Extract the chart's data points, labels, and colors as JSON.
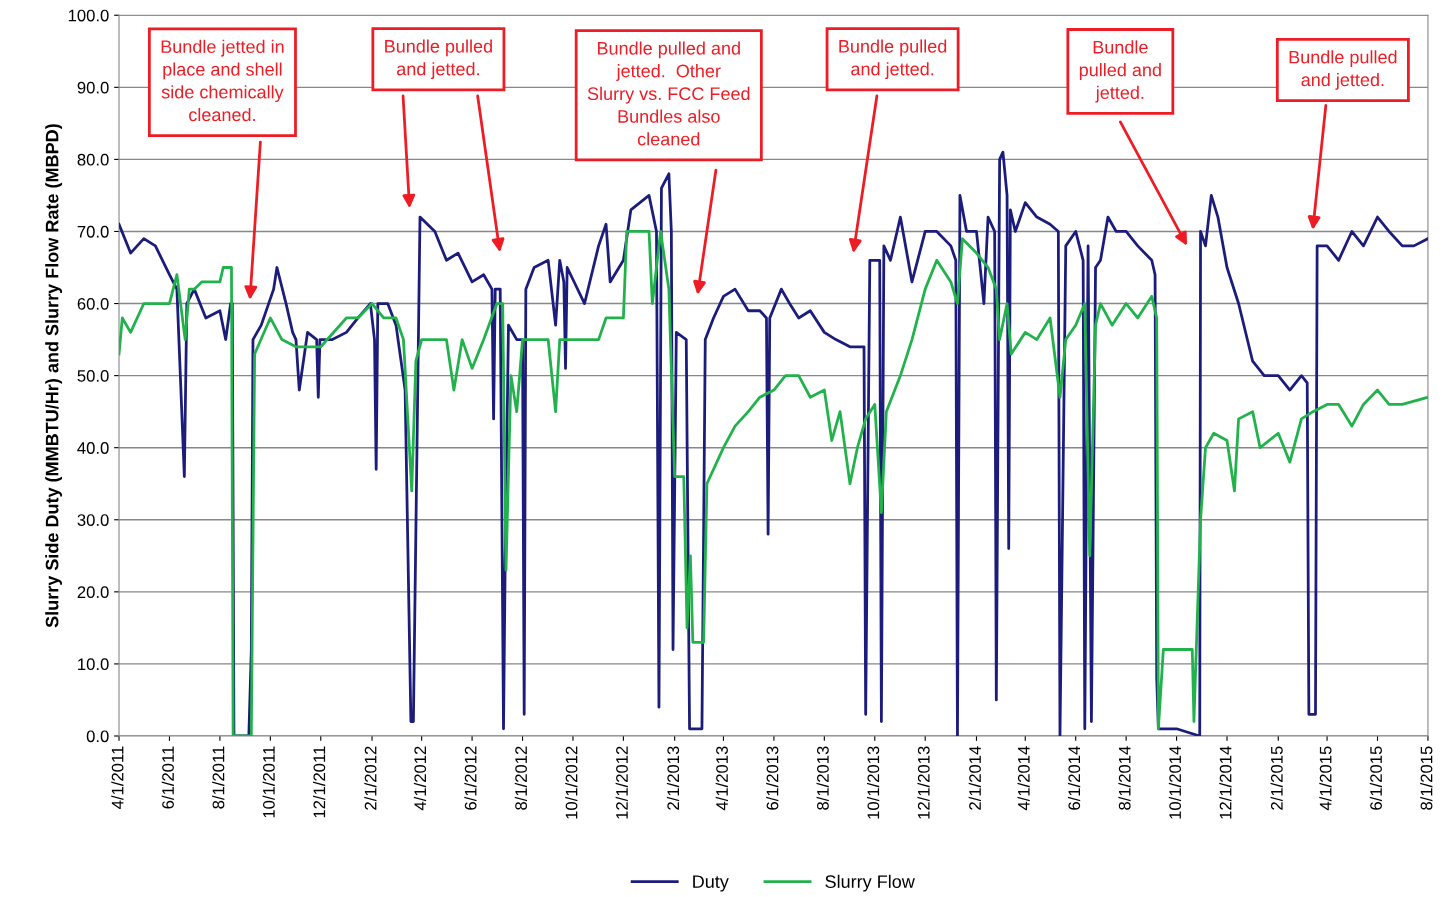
{
  "chart_data": {
    "type": "line",
    "ylabel": "Slurry Side Duty (MMBTU/Hr) and Slurry Flow Rate (MBPD)",
    "xlim": [
      "2011-04-01",
      "2015-08-01"
    ],
    "xticks": [
      {
        "value": "2011-04-01",
        "label": "4/1/2011"
      },
      {
        "value": "2011-06-01",
        "label": "6/1/2011"
      },
      {
        "value": "2011-08-01",
        "label": "8/1/2011"
      },
      {
        "value": "2011-10-01",
        "label": "10/1/2011"
      },
      {
        "value": "2011-12-01",
        "label": "12/1/2011"
      },
      {
        "value": "2012-02-01",
        "label": "2/1/2012"
      },
      {
        "value": "2012-04-01",
        "label": "4/1/2012"
      },
      {
        "value": "2012-06-01",
        "label": "6/1/2012"
      },
      {
        "value": "2012-08-01",
        "label": "8/1/2012"
      },
      {
        "value": "2012-10-01",
        "label": "10/1/2012"
      },
      {
        "value": "2012-12-01",
        "label": "12/1/2012"
      },
      {
        "value": "2013-02-01",
        "label": "2/1/2013"
      },
      {
        "value": "2013-04-01",
        "label": "4/1/2013"
      },
      {
        "value": "2013-06-01",
        "label": "6/1/2013"
      },
      {
        "value": "2013-08-01",
        "label": "8/1/2013"
      },
      {
        "value": "2013-10-01",
        "label": "10/1/2013"
      },
      {
        "value": "2013-12-01",
        "label": "12/1/2013"
      },
      {
        "value": "2014-02-01",
        "label": "2/1/2014"
      },
      {
        "value": "2014-04-01",
        "label": "4/1/2014"
      },
      {
        "value": "2014-06-01",
        "label": "6/1/2014"
      },
      {
        "value": "2014-08-01",
        "label": "8/1/2014"
      },
      {
        "value": "2014-10-01",
        "label": "10/1/2014"
      },
      {
        "value": "2014-12-01",
        "label": "12/1/2014"
      },
      {
        "value": "2015-02-01",
        "label": "2/1/2015"
      },
      {
        "value": "2015-04-01",
        "label": "4/1/2015"
      },
      {
        "value": "2015-06-01",
        "label": "6/1/2015"
      },
      {
        "value": "2015-08-01",
        "label": "8/1/2015"
      }
    ],
    "ylim": [
      0,
      100
    ],
    "yticks": [
      {
        "value": 0,
        "label": "0.0"
      },
      {
        "value": 10,
        "label": "10.0"
      },
      {
        "value": 20,
        "label": "20.0"
      },
      {
        "value": 30,
        "label": "30.0"
      },
      {
        "value": 40,
        "label": "40.0"
      },
      {
        "value": 50,
        "label": "50.0"
      },
      {
        "value": 60,
        "label": "60.0"
      },
      {
        "value": 70,
        "label": "70.0"
      },
      {
        "value": 80,
        "label": "80.0"
      },
      {
        "value": 90,
        "label": "90.0"
      },
      {
        "value": 100,
        "label": "100.0"
      }
    ],
    "grid": "y",
    "legend": "bottom",
    "line_style": "solid",
    "marker": "none",
    "series": [
      {
        "name": "Duty",
        "color": "#1c1c7c",
        "x": [
          "2011-04-01",
          "2011-04-15",
          "2011-05-01",
          "2011-05-15",
          "2011-06-01",
          "2011-06-10",
          "2011-06-19",
          "2011-06-22",
          "2011-07-01",
          "2011-07-15",
          "2011-08-01",
          "2011-08-08",
          "2011-08-14",
          "2011-08-16",
          "2011-08-18",
          "2011-09-05",
          "2011-09-08",
          "2011-09-10",
          "2011-09-20",
          "2011-10-05",
          "2011-10-09",
          "2011-10-20",
          "2011-10-28",
          "2011-11-01",
          "2011-11-05",
          "2011-11-15",
          "2011-11-26",
          "2011-11-28",
          "2011-11-30",
          "2011-12-15",
          "2012-01-01",
          "2012-01-15",
          "2012-01-30",
          "2012-02-04",
          "2012-02-06",
          "2012-02-08",
          "2012-02-20",
          "2012-03-01",
          "2012-03-12",
          "2012-03-19",
          "2012-03-22",
          "2012-03-30",
          "2012-04-17",
          "2012-05-01",
          "2012-05-15",
          "2012-06-01",
          "2012-06-15",
          "2012-06-25",
          "2012-06-27",
          "2012-06-29",
          "2012-07-05",
          "2012-07-09",
          "2012-07-11",
          "2012-07-15",
          "2012-07-25",
          "2012-08-01",
          "2012-08-03",
          "2012-08-05",
          "2012-08-15",
          "2012-09-01",
          "2012-09-10",
          "2012-09-15",
          "2012-09-20",
          "2012-09-22",
          "2012-09-24",
          "2012-10-15",
          "2012-11-01",
          "2012-11-10",
          "2012-11-15",
          "2012-12-01",
          "2012-12-10",
          "2013-01-01",
          "2013-01-10",
          "2013-01-13",
          "2013-01-16",
          "2013-01-25",
          "2013-01-28",
          "2013-01-30",
          "2013-02-03",
          "2013-02-15",
          "2013-02-19",
          "2013-03-06",
          "2013-03-10",
          "2013-03-20",
          "2013-04-01",
          "2013-04-15",
          "2013-05-01",
          "2013-05-15",
          "2013-05-23",
          "2013-05-25",
          "2013-05-27",
          "2013-06-10",
          "2013-06-20",
          "2013-07-01",
          "2013-07-15",
          "2013-08-01",
          "2013-08-15",
          "2013-09-01",
          "2013-09-18",
          "2013-09-20",
          "2013-09-25",
          "2013-10-07",
          "2013-10-09",
          "2013-10-12",
          "2013-10-20",
          "2013-11-01",
          "2013-11-15",
          "2013-12-01",
          "2013-12-15",
          "2014-01-01",
          "2014-01-07",
          "2014-01-09",
          "2014-01-12",
          "2014-01-20",
          "2014-02-01",
          "2014-02-10",
          "2014-02-15",
          "2014-02-23",
          "2014-02-25",
          "2014-03-01",
          "2014-03-05",
          "2014-03-10",
          "2014-03-12",
          "2014-03-14",
          "2014-03-20",
          "2014-04-01",
          "2014-04-15",
          "2014-05-01",
          "2014-05-11",
          "2014-05-13",
          "2014-05-20",
          "2014-06-01",
          "2014-06-10",
          "2014-06-12",
          "2014-06-16",
          "2014-06-20",
          "2014-06-25",
          "2014-07-01",
          "2014-07-10",
          "2014-07-20",
          "2014-08-01",
          "2014-08-15",
          "2014-09-01",
          "2014-09-05",
          "2014-09-07",
          "2014-09-09",
          "2014-10-01",
          "2014-10-29",
          "2014-10-30",
          "2014-11-05",
          "2014-11-12",
          "2014-11-20",
          "2014-12-01",
          "2014-12-15",
          "2015-01-01",
          "2015-01-15",
          "2015-02-01",
          "2015-02-15",
          "2015-03-01",
          "2015-03-08",
          "2015-03-10",
          "2015-03-18",
          "2015-03-20",
          "2015-04-01",
          "2015-04-15",
          "2015-05-01",
          "2015-05-15",
          "2015-06-01",
          "2015-06-15",
          "2015-07-01",
          "2015-07-15",
          "2015-08-01"
        ],
        "values": [
          71,
          67,
          69,
          68,
          64,
          62,
          36,
          60,
          62,
          58,
          59,
          55,
          60,
          60,
          0,
          0,
          12,
          55,
          57,
          62,
          65,
          60,
          56,
          55,
          48,
          56,
          55,
          47,
          55,
          55,
          56,
          58,
          60,
          55,
          37,
          60,
          60,
          57,
          48,
          2,
          2,
          72,
          70,
          66,
          67,
          63,
          64,
          62,
          44,
          62,
          62,
          1,
          24,
          57,
          55,
          55,
          3,
          62,
          65,
          66,
          57,
          66,
          63,
          51,
          65,
          60,
          68,
          71,
          63,
          66,
          73,
          75,
          70,
          4,
          76,
          78,
          70,
          12,
          56,
          55,
          1,
          1,
          55,
          58,
          61,
          62,
          59,
          59,
          58,
          28,
          58,
          62,
          60,
          58,
          59,
          56,
          55,
          54,
          54,
          3,
          66,
          66,
          2,
          68,
          66,
          72,
          63,
          70,
          70,
          68,
          66,
          0,
          75,
          70,
          70,
          60,
          72,
          70,
          5,
          80,
          81,
          75,
          26,
          73,
          70,
          74,
          72,
          71,
          70,
          0,
          68,
          70,
          66,
          1,
          68,
          2,
          65,
          66,
          72,
          70,
          70,
          68,
          66,
          64,
          8,
          1,
          1,
          0,
          70,
          68,
          75,
          72,
          65,
          60,
          52,
          50,
          50,
          48,
          50,
          49,
          3,
          3,
          68,
          68,
          66,
          70,
          68,
          72,
          70,
          68,
          68,
          69
        ]
      },
      {
        "name": "Slurry Flow",
        "color": "#22b24c",
        "x": [
          "2011-04-01",
          "2011-04-05",
          "2011-04-15",
          "2011-05-01",
          "2011-05-15",
          "2011-06-01",
          "2011-06-10",
          "2011-06-20",
          "2011-06-25",
          "2011-07-01",
          "2011-07-10",
          "2011-08-01",
          "2011-08-05",
          "2011-08-15",
          "2011-08-17",
          "2011-09-08",
          "2011-09-10",
          "2011-09-12",
          "2011-10-01",
          "2011-10-15",
          "2011-11-01",
          "2011-11-15",
          "2011-12-01",
          "2012-01-01",
          "2012-01-15",
          "2012-02-01",
          "2012-02-15",
          "2012-03-01",
          "2012-03-10",
          "2012-03-20",
          "2012-03-25",
          "2012-04-01",
          "2012-04-15",
          "2012-05-01",
          "2012-05-10",
          "2012-05-20",
          "2012-06-01",
          "2012-06-15",
          "2012-07-01",
          "2012-07-08",
          "2012-07-12",
          "2012-07-18",
          "2012-07-25",
          "2012-08-01",
          "2012-08-15",
          "2012-09-01",
          "2012-09-10",
          "2012-09-15",
          "2012-10-01",
          "2012-11-01",
          "2012-11-10",
          "2012-12-01",
          "2012-12-05",
          "2013-01-01",
          "2013-01-05",
          "2013-01-15",
          "2013-01-25",
          "2013-02-01",
          "2013-02-12",
          "2013-02-16",
          "2013-02-20",
          "2013-02-23",
          "2013-03-08",
          "2013-03-12",
          "2013-04-01",
          "2013-04-15",
          "2013-05-01",
          "2013-05-15",
          "2013-06-01",
          "2013-06-15",
          "2013-07-01",
          "2013-07-15",
          "2013-08-01",
          "2013-08-10",
          "2013-08-20",
          "2013-09-01",
          "2013-09-10",
          "2013-09-20",
          "2013-10-01",
          "2013-10-09",
          "2013-10-15",
          "2013-11-01",
          "2013-11-15",
          "2013-12-01",
          "2013-12-15",
          "2014-01-01",
          "2014-01-09",
          "2014-01-15",
          "2014-02-01",
          "2014-02-15",
          "2014-02-25",
          "2014-03-01",
          "2014-03-10",
          "2014-03-15",
          "2014-04-01",
          "2014-04-15",
          "2014-05-01",
          "2014-05-13",
          "2014-05-20",
          "2014-06-01",
          "2014-06-12",
          "2014-06-18",
          "2014-06-25",
          "2014-07-01",
          "2014-07-15",
          "2014-08-01",
          "2014-08-15",
          "2014-09-01",
          "2014-09-07",
          "2014-09-09",
          "2014-09-15",
          "2014-10-20",
          "2014-10-22",
          "2014-10-30",
          "2014-11-05",
          "2014-11-15",
          "2014-12-01",
          "2014-12-10",
          "2014-12-15",
          "2015-01-01",
          "2015-01-10",
          "2015-02-01",
          "2015-02-15",
          "2015-03-01",
          "2015-03-15",
          "2015-04-01",
          "2015-04-15",
          "2015-05-01",
          "2015-05-15",
          "2015-06-01",
          "2015-06-15",
          "2015-07-01",
          "2015-08-01"
        ],
        "values": [
          53,
          58,
          56,
          60,
          60,
          60,
          64,
          55,
          62,
          62,
          63,
          63,
          65,
          65,
          0,
          0,
          27,
          53,
          58,
          55,
          54,
          54,
          54,
          58,
          58,
          60,
          58,
          58,
          55,
          34,
          52,
          55,
          55,
          55,
          48,
          55,
          51,
          55,
          60,
          60,
          23,
          50,
          45,
          55,
          55,
          55,
          45,
          55,
          55,
          55,
          58,
          58,
          70,
          70,
          60,
          70,
          62,
          36,
          36,
          15,
          25,
          13,
          13,
          35,
          40,
          43,
          45,
          47,
          48,
          50,
          50,
          47,
          48,
          41,
          45,
          35,
          40,
          44,
          46,
          31,
          45,
          50,
          55,
          62,
          66,
          63,
          60,
          69,
          67,
          65,
          62,
          55,
          60,
          53,
          56,
          55,
          58,
          47,
          55,
          57,
          60,
          25,
          57,
          60,
          57,
          60,
          58,
          61,
          58,
          1,
          12,
          12,
          2,
          30,
          40,
          42,
          41,
          34,
          44,
          45,
          40,
          42,
          38,
          44,
          45,
          46,
          46,
          43,
          46,
          48,
          46,
          46,
          47
        ]
      }
    ],
    "annotations": [
      "Bundle jetted in\nplace and shell\nside chemically\ncleaned.",
      "Bundle pulled\nand jetted.",
      "Bundle pulled and\njetted.  Other\nSlurry vs. FCC Feed\nBundles also\ncleaned",
      "Bundle pulled\nand jetted.",
      "Bundle\npulled and\njetted.",
      "Bundle pulled\nand jetted."
    ]
  }
}
